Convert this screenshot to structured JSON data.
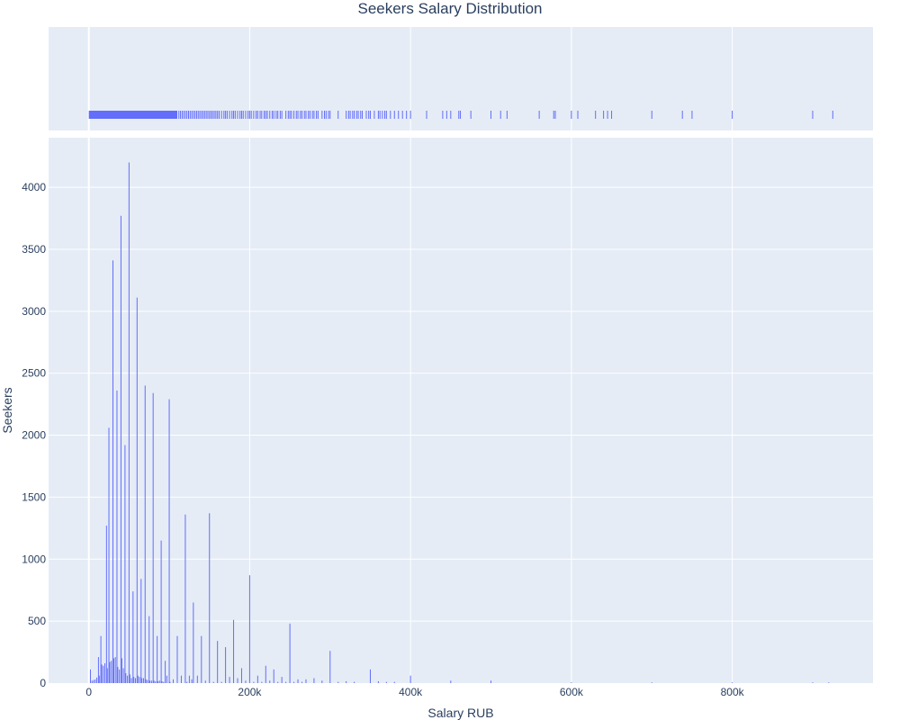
{
  "chart_data": {
    "type": "bar",
    "title": "Seekers Salary Distribution",
    "xlabel": "Salary RUB",
    "ylabel": "Seekers",
    "color": "#636efa",
    "background": "#e5ecf6",
    "grid": true,
    "xlim": [
      -50000,
      975000
    ],
    "ylim": [
      0,
      4400
    ],
    "x_tick_labels": [
      "0",
      "200k",
      "400k",
      "600k",
      "800k"
    ],
    "x_ticks": [
      0,
      200000,
      400000,
      600000,
      800000
    ],
    "y_ticks": [
      0,
      500,
      1000,
      1500,
      2000,
      2500,
      3000,
      3500,
      4000
    ],
    "bin_width": 1000,
    "histogram": [
      [
        2000,
        110
      ],
      [
        4000,
        20
      ],
      [
        6000,
        25
      ],
      [
        8000,
        30
      ],
      [
        10000,
        45
      ],
      [
        12000,
        210
      ],
      [
        13000,
        60
      ],
      [
        15000,
        380
      ],
      [
        16000,
        150
      ],
      [
        18000,
        140
      ],
      [
        20000,
        160
      ],
      [
        22000,
        1270
      ],
      [
        23000,
        120
      ],
      [
        25000,
        2060
      ],
      [
        26000,
        170
      ],
      [
        28000,
        180
      ],
      [
        30000,
        3410
      ],
      [
        31000,
        200
      ],
      [
        33000,
        210
      ],
      [
        35000,
        2360
      ],
      [
        36000,
        130
      ],
      [
        38000,
        110
      ],
      [
        40000,
        3770
      ],
      [
        41000,
        200
      ],
      [
        43000,
        120
      ],
      [
        45000,
        1920
      ],
      [
        46000,
        80
      ],
      [
        48000,
        60
      ],
      [
        50000,
        4200
      ],
      [
        51000,
        70
      ],
      [
        53000,
        40
      ],
      [
        55000,
        740
      ],
      [
        56000,
        50
      ],
      [
        58000,
        40
      ],
      [
        60000,
        3110
      ],
      [
        61000,
        60
      ],
      [
        63000,
        50
      ],
      [
        65000,
        840
      ],
      [
        66000,
        40
      ],
      [
        68000,
        40
      ],
      [
        70000,
        2400
      ],
      [
        71000,
        30
      ],
      [
        73000,
        25
      ],
      [
        75000,
        540
      ],
      [
        76000,
        20
      ],
      [
        78000,
        20
      ],
      [
        80000,
        2340
      ],
      [
        81000,
        20
      ],
      [
        83000,
        15
      ],
      [
        85000,
        380
      ],
      [
        86000,
        15
      ],
      [
        88000,
        20
      ],
      [
        90000,
        1150
      ],
      [
        91000,
        15
      ],
      [
        93000,
        10
      ],
      [
        95000,
        180
      ],
      [
        97000,
        60
      ],
      [
        100000,
        2290
      ],
      [
        101000,
        10
      ],
      [
        105000,
        30
      ],
      [
        110000,
        380
      ],
      [
        115000,
        60
      ],
      [
        120000,
        1360
      ],
      [
        122000,
        10
      ],
      [
        125000,
        60
      ],
      [
        128000,
        30
      ],
      [
        130000,
        650
      ],
      [
        135000,
        60
      ],
      [
        140000,
        380
      ],
      [
        145000,
        20
      ],
      [
        150000,
        1370
      ],
      [
        155000,
        10
      ],
      [
        160000,
        340
      ],
      [
        165000,
        10
      ],
      [
        170000,
        290
      ],
      [
        175000,
        50
      ],
      [
        180000,
        510
      ],
      [
        185000,
        40
      ],
      [
        190000,
        120
      ],
      [
        195000,
        20
      ],
      [
        200000,
        870
      ],
      [
        205000,
        10
      ],
      [
        210000,
        60
      ],
      [
        215000,
        10
      ],
      [
        220000,
        140
      ],
      [
        225000,
        20
      ],
      [
        230000,
        110
      ],
      [
        235000,
        10
      ],
      [
        240000,
        50
      ],
      [
        245000,
        10
      ],
      [
        250000,
        480
      ],
      [
        255000,
        10
      ],
      [
        260000,
        30
      ],
      [
        265000,
        10
      ],
      [
        270000,
        30
      ],
      [
        280000,
        40
      ],
      [
        290000,
        20
      ],
      [
        300000,
        260
      ],
      [
        310000,
        10
      ],
      [
        320000,
        15
      ],
      [
        330000,
        10
      ],
      [
        350000,
        110
      ],
      [
        360000,
        15
      ],
      [
        370000,
        10
      ],
      [
        380000,
        10
      ],
      [
        400000,
        60
      ],
      [
        450000,
        20
      ],
      [
        500000,
        20
      ],
      [
        600000,
        5
      ],
      [
        700000,
        3
      ],
      [
        800000,
        2
      ],
      [
        900000,
        1
      ],
      [
        920000,
        1
      ]
    ],
    "rug_dense_range": [
      0,
      110000
    ],
    "rug_points": [
      112000,
      114000,
      116000,
      118000,
      120000,
      122000,
      124000,
      126000,
      128000,
      130000,
      132000,
      134000,
      136000,
      138000,
      140000,
      142000,
      144000,
      146000,
      148000,
      150000,
      152000,
      154000,
      156000,
      158000,
      160000,
      162000,
      165000,
      168000,
      170000,
      172000,
      175000,
      178000,
      180000,
      182000,
      185000,
      188000,
      190000,
      192000,
      195000,
      198000,
      200000,
      202000,
      205000,
      208000,
      210000,
      213000,
      215000,
      218000,
      220000,
      222000,
      225000,
      228000,
      230000,
      233000,
      235000,
      238000,
      240000,
      245000,
      248000,
      250000,
      252000,
      255000,
      258000,
      260000,
      263000,
      265000,
      268000,
      270000,
      273000,
      275000,
      278000,
      280000,
      283000,
      285000,
      290000,
      293000,
      295000,
      298000,
      300000,
      310000,
      320000,
      323000,
      325000,
      328000,
      330000,
      333000,
      335000,
      338000,
      340000,
      345000,
      348000,
      350000,
      355000,
      360000,
      362000,
      365000,
      368000,
      370000,
      375000,
      380000,
      385000,
      390000,
      395000,
      400000,
      420000,
      440000,
      445000,
      450000,
      460000,
      462000,
      475000,
      500000,
      512000,
      520000,
      560000,
      578000,
      580000,
      600000,
      608000,
      630000,
      640000,
      645000,
      650000,
      700000,
      738000,
      750000,
      800000,
      900000,
      925000
    ]
  }
}
